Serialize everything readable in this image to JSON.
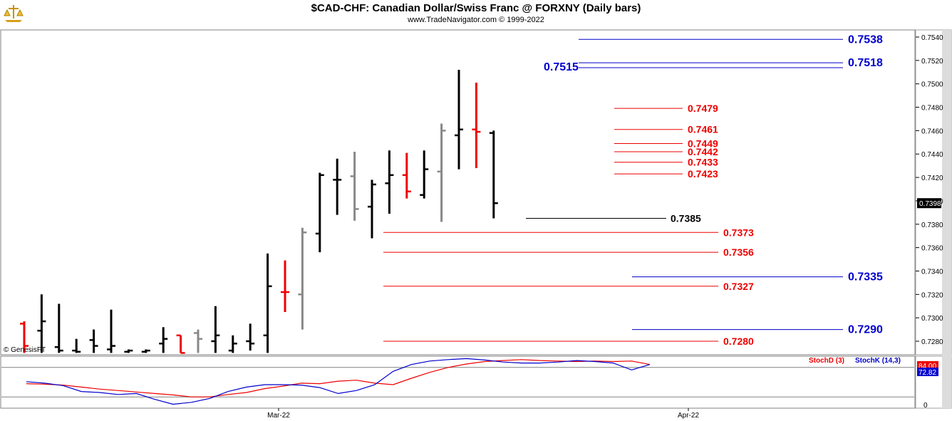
{
  "header": {
    "title": "$CAD-CHF:  Canadian Dollar/Swiss Franc @ FORXNY  (Daily bars)",
    "subtitle": "www.TradeNavigator.com © 1999-2022",
    "watermark": "© GenesisFT"
  },
  "colors": {
    "blue": "#0000cc",
    "red": "#ee0000",
    "black": "#000000",
    "grey": "#888888"
  },
  "chart_data": [
    {
      "type": "ohlc",
      "ylim": [
        0.727,
        0.755
      ],
      "price_ticks": [
        "0.7540",
        "0.7520",
        "0.7500",
        "0.7480",
        "0.7460",
        "0.7440",
        "0.7420",
        "0.7400",
        "0.7380",
        "0.7360",
        "0.7340",
        "0.7320",
        "0.7300",
        "0.7280"
      ],
      "last_price": "0.7398",
      "bars": [
        {
          "color": "red",
          "high": 0.7297,
          "low": 0.727,
          "open": 0.7295,
          "close": 0.7276
        },
        {
          "color": "black",
          "high": 0.732,
          "low": 0.727,
          "open": 0.7289,
          "close": 0.7297
        },
        {
          "color": "black",
          "high": 0.7312,
          "low": 0.727,
          "open": 0.7275,
          "close": 0.7272
        },
        {
          "color": "black",
          "high": 0.7282,
          "low": 0.727,
          "open": 0.7272,
          "close": 0.7271
        },
        {
          "color": "black",
          "high": 0.729,
          "low": 0.727,
          "open": 0.7281,
          "close": 0.7276
        },
        {
          "color": "black",
          "high": 0.7307,
          "low": 0.727,
          "open": 0.7273,
          "close": 0.7276
        },
        {
          "color": "black",
          "high": 0.7273,
          "low": 0.727,
          "open": 0.7271,
          "close": 0.7272
        },
        {
          "color": "black",
          "high": 0.7273,
          "low": 0.727,
          "open": 0.7271,
          "close": 0.7272
        },
        {
          "color": "black",
          "high": 0.7292,
          "low": 0.727,
          "open": 0.7278,
          "close": 0.7282
        },
        {
          "color": "red",
          "high": 0.7285,
          "low": 0.727,
          "open": 0.7285,
          "close": 0.727
        },
        {
          "color": "grey",
          "high": 0.729,
          "low": 0.727,
          "open": 0.7287,
          "close": 0.7282
        },
        {
          "color": "black",
          "high": 0.731,
          "low": 0.727,
          "open": 0.728,
          "close": 0.7285
        },
        {
          "color": "black",
          "high": 0.7285,
          "low": 0.727,
          "open": 0.7272,
          "close": 0.7278
        },
        {
          "color": "black",
          "high": 0.7295,
          "low": 0.7272,
          "open": 0.728,
          "close": 0.7278
        },
        {
          "color": "black",
          "high": 0.7355,
          "low": 0.727,
          "open": 0.7285,
          "close": 0.7327
        },
        {
          "color": "red",
          "high": 0.7349,
          "low": 0.7305,
          "open": 0.7322,
          "close": 0.7322
        },
        {
          "color": "grey",
          "high": 0.7377,
          "low": 0.729,
          "open": 0.732,
          "close": 0.7373
        },
        {
          "color": "black",
          "high": 0.7424,
          "low": 0.7356,
          "open": 0.7372,
          "close": 0.7422
        },
        {
          "color": "black",
          "high": 0.7436,
          "low": 0.7388,
          "open": 0.7418,
          "close": 0.7418
        },
        {
          "color": "grey",
          "high": 0.7442,
          "low": 0.7383,
          "open": 0.7421,
          "close": 0.7393
        },
        {
          "color": "black",
          "high": 0.7418,
          "low": 0.7368,
          "open": 0.7395,
          "close": 0.7414
        },
        {
          "color": "black",
          "high": 0.7443,
          "low": 0.7389,
          "open": 0.7415,
          "close": 0.7422
        },
        {
          "color": "red",
          "high": 0.7441,
          "low": 0.7402,
          "open": 0.7422,
          "close": 0.7408
        },
        {
          "color": "black",
          "high": 0.7443,
          "low": 0.7402,
          "open": 0.7405,
          "close": 0.7427
        },
        {
          "color": "grey",
          "high": 0.7466,
          "low": 0.7382,
          "open": 0.7425,
          "close": 0.746
        },
        {
          "color": "black",
          "high": 0.7512,
          "low": 0.7427,
          "open": 0.7456,
          "close": 0.7461
        },
        {
          "color": "red",
          "high": 0.7501,
          "low": 0.7428,
          "open": 0.7461,
          "close": 0.7459
        },
        {
          "color": "black",
          "high": 0.746,
          "low": 0.7385,
          "open": 0.7458,
          "close": 0.7398
        }
      ],
      "levels": [
        {
          "label": "0.7538",
          "value": 0.7538,
          "color": "blue"
        },
        {
          "label": "0.7518",
          "value": 0.7518,
          "color": "blue"
        },
        {
          "label": "0.7515",
          "value": 0.7515,
          "color": "blue"
        },
        {
          "label": "0.7479",
          "value": 0.7479,
          "color": "red"
        },
        {
          "label": "0.7461",
          "value": 0.7461,
          "color": "red"
        },
        {
          "label": "0.7449",
          "value": 0.7449,
          "color": "red"
        },
        {
          "label": "0.7442",
          "value": 0.7442,
          "color": "red"
        },
        {
          "label": "0.7433",
          "value": 0.7433,
          "color": "red"
        },
        {
          "label": "0.7423",
          "value": 0.7423,
          "color": "red"
        },
        {
          "label": "0.7385",
          "value": 0.7385,
          "color": "black"
        },
        {
          "label": "0.7373",
          "value": 0.7373,
          "color": "red"
        },
        {
          "label": "0.7356",
          "value": 0.7356,
          "color": "red"
        },
        {
          "label": "0.7335",
          "value": 0.7335,
          "color": "blue"
        },
        {
          "label": "0.7327",
          "value": 0.7327,
          "color": "red"
        },
        {
          "label": "0.7290",
          "value": 0.729,
          "color": "blue"
        },
        {
          "label": "0.7280",
          "value": 0.728,
          "color": "red"
        }
      ]
    },
    {
      "type": "line",
      "ylim": [
        0,
        100
      ],
      "tick_labels": [
        "84.00",
        "72.82",
        "0"
      ],
      "legend": [
        {
          "name": "StochD (3)",
          "color": "red"
        },
        {
          "name": "StochK (14,3)",
          "color": "blue"
        }
      ],
      "reference_levels": [
        80,
        20
      ],
      "series": [
        {
          "name": "StochD (3)",
          "color": "red",
          "values": [
            47,
            46,
            44,
            40,
            36,
            33,
            30,
            27,
            24,
            20,
            20,
            25,
            29,
            37,
            42,
            48,
            47,
            52,
            54,
            48,
            45,
            58,
            70,
            80,
            87,
            92,
            94,
            96,
            94,
            93,
            92,
            93,
            92,
            93,
            86
          ]
        },
        {
          "name": "StochK (14,3)",
          "color": "blue",
          "values": [
            51,
            48,
            43,
            31,
            29,
            25,
            27,
            15,
            5,
            9,
            17,
            31,
            40,
            45,
            45,
            44,
            39,
            27,
            33,
            45,
            72,
            86,
            93,
            96,
            98,
            95,
            91,
            89,
            89,
            91,
            94,
            92,
            89,
            75,
            86
          ]
        }
      ]
    }
  ],
  "x_axis": {
    "labels": [
      "Mar-22",
      "Apr-22"
    ]
  }
}
